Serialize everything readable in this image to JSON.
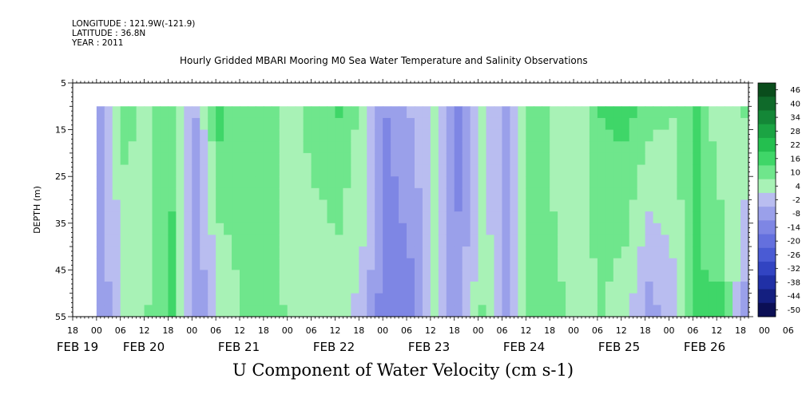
{
  "header": {
    "longitude": "LONGITUDE : 121.9W(-121.9)",
    "latitude": "LATITUDE : 36.8N",
    "year": "YEAR : 2011"
  },
  "chart_data": {
    "type": "heatmap",
    "title": "Hourly Gridded MBARI Mooring M0 Sea Water Temperature and Salinity Observations",
    "xlabel": "U Component of Water Velocity (cm s-1)",
    "ylabel": "DEPTH (m)",
    "y_reversed": true,
    "ylim": [
      5,
      55
    ],
    "y_ticks": [
      5,
      15,
      25,
      35,
      45,
      55
    ],
    "data_depth_range": [
      10,
      55
    ],
    "x_range_hours": [
      "2011-02-19 18:00",
      "2011-02-26 20:00"
    ],
    "x_hour_ticks": [
      "18",
      "00",
      "06",
      "12",
      "18",
      "00",
      "06",
      "12",
      "18",
      "00",
      "06",
      "12",
      "18",
      "00",
      "06",
      "12",
      "18",
      "00",
      "06",
      "12",
      "18",
      "00",
      "06",
      "12",
      "18",
      "00",
      "06",
      "12",
      "18",
      "00",
      "06",
      "12",
      "18"
    ],
    "x_date_labels": [
      "FEB 19",
      "FEB 20",
      "FEB 21",
      "FEB 22",
      "FEB 23",
      "FEB 24",
      "FEB 25",
      "FEB 26"
    ],
    "colorbar": {
      "levels": [
        "46",
        "40",
        "34",
        "28",
        "22",
        "16",
        "10",
        "4",
        "-2",
        "-8",
        "-14",
        "-20",
        "-26",
        "-32",
        "-38",
        "-44",
        "-50"
      ],
      "colors": [
        "#0a4d1c",
        "#0f6a2a",
        "#148737",
        "#1ba443",
        "#24bf4f",
        "#3fd668",
        "#6fe68c",
        "#a8f2b6",
        "#b9bdf0",
        "#9aa0ea",
        "#7e86e4",
        "#6470de",
        "#4a5bd4",
        "#3244c2",
        "#2030a6",
        "#141f80",
        "#0b0f55"
      ]
    },
    "velocity_column_profile_cm_s": {
      "description_units": "cm s-1",
      "times": [
        "02-20 00",
        "02-20 06",
        "02-20 12",
        "02-20 18",
        "02-21 00",
        "02-21 06",
        "02-21 12",
        "02-21 18",
        "02-22 00",
        "02-22 06",
        "02-22 12",
        "02-22 18",
        "02-23 00",
        "02-23 06",
        "02-23 12",
        "02-23 18",
        "02-24 00",
        "02-24 06",
        "02-24 12",
        "02-24 18",
        "02-25 00",
        "02-25 06",
        "02-25 12",
        "02-25 18",
        "02-26 00",
        "02-26 06",
        "02-26 12",
        "02-26 18"
      ],
      "surface_values": [
        -4,
        12,
        8,
        14,
        -2,
        18,
        10,
        12,
        6,
        14,
        16,
        8,
        -8,
        -2,
        4,
        -10,
        6,
        -6,
        14,
        8,
        4,
        16,
        18,
        12,
        10,
        18,
        4,
        10
      ],
      "bottom_values": [
        -6,
        4,
        10,
        18,
        -8,
        4,
        12,
        14,
        8,
        4,
        6,
        2,
        -14,
        -10,
        4,
        -6,
        10,
        -4,
        10,
        12,
        8,
        10,
        6,
        -4,
        2,
        16,
        18,
        -4
      ]
    }
  }
}
